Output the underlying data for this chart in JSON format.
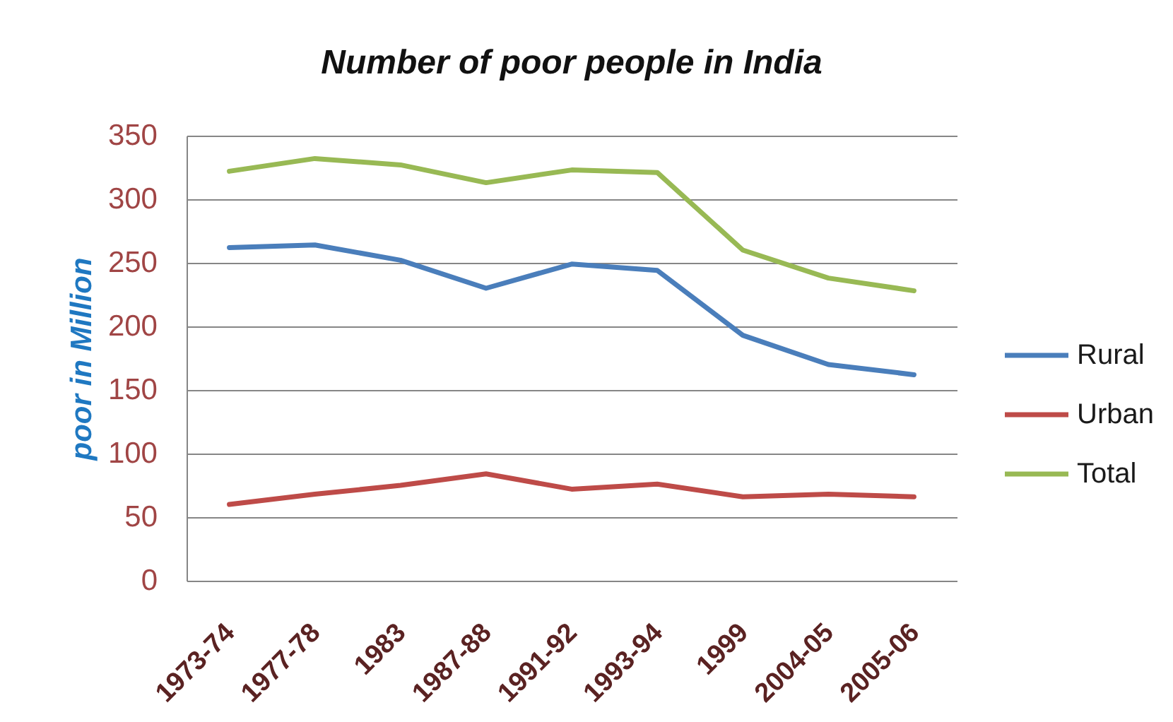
{
  "chart_data": {
    "type": "line",
    "title": "Number of poor people in India",
    "ylabel": "poor in Million",
    "categories": [
      "1973-74",
      "1977-78",
      "1983",
      "1987-88",
      "1991-92",
      "1993-94",
      "1999",
      "2004-05",
      "2005-06"
    ],
    "series": [
      {
        "name": "Rural",
        "color": "#4a7ebb",
        "values": [
          262,
          264,
          252,
          230,
          249,
          244,
          193,
          170,
          162
        ]
      },
      {
        "name": "Urban",
        "color": "#be4b48",
        "values": [
          60,
          68,
          75,
          84,
          72,
          76,
          66,
          68,
          66
        ]
      },
      {
        "name": "Total",
        "color": "#98b954",
        "values": [
          322,
          332,
          327,
          313,
          323,
          321,
          260,
          238,
          228
        ]
      }
    ],
    "ylim": [
      0,
      350
    ],
    "yticks": [
      0,
      50,
      100,
      150,
      200,
      250,
      300,
      350
    ],
    "grid": "y",
    "legend": "right",
    "marker": "none",
    "line_style": "solid"
  }
}
